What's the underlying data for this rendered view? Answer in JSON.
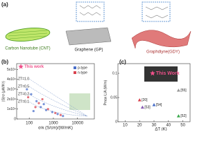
{
  "panel_a": {
    "label": "(a)",
    "cnt": "Carbon Nanotube (CNT)",
    "gp": "Graphene (GP)",
    "gdy": "Graphdiyne(GDY)"
  },
  "chart_data": [
    {
      "type": "scatter",
      "panel": "(b)",
      "xlabel": "σ/κ (S/cm)/(W/mK)",
      "ylabel": "|S|²σ (μW/K²)",
      "xscale": "log",
      "xlim": [
        30,
        50000
      ],
      "xticks": [
        100,
        1000,
        10000
      ],
      "ylim": [
        0,
        56000
      ],
      "yticks": [
        0,
        {
          "value": 10000,
          "label": "1x10⁴"
        },
        {
          "value": 20000,
          "label": "2x10⁴"
        },
        {
          "value": 30000,
          "label": "3x10⁴"
        },
        {
          "value": 40000,
          "label": "4x10⁴"
        },
        {
          "value": 50000,
          "label": "5x10⁴"
        }
      ],
      "series": [
        {
          "name": "p-type",
          "color": "#4a6fc9",
          "x": [
            80,
            120,
            200,
            300,
            500,
            900,
            1500,
            2500,
            150,
            400
          ],
          "values": [
            30000,
            25000,
            18000,
            12000,
            9000,
            7000,
            5000,
            3000,
            8000,
            15000
          ]
        },
        {
          "name": "n-type",
          "color": "#d9434f",
          "x": [
            90,
            250,
            600,
            1200,
            2000,
            180,
            350
          ],
          "values": [
            22000,
            16000,
            10000,
            6000,
            4000,
            12000,
            20000
          ]
        }
      ],
      "highlight": {
        "name": "This work",
        "color": "#f0508a",
        "x": 45,
        "value": 53000
      },
      "annotations": [
        "ZT=1.0",
        "ZT=0.5",
        "ZT=0.2",
        "ZT=0.1"
      ]
    },
    {
      "type": "scatter",
      "panel": "(c)",
      "xlabel": "ΔT (K)",
      "ylabel": "Pmax·L/A (W/m)",
      "xlim": [
        5,
        55
      ],
      "xticks": [
        10,
        20,
        30,
        40,
        50
      ],
      "ylim": [
        0,
        0.12
      ],
      "yticks": [
        0,
        0.05,
        0.1
      ],
      "points": {
        "x": [
          47,
          20,
          22,
          30,
          47
        ],
        "values": [
          0.065,
          0.045,
          0.03,
          0.035,
          0.012
        ],
        "labels": [
          "[55]",
          "[20]",
          "[53]",
          "[54]",
          "[52]"
        ],
        "colors": [
          "#999999",
          "#d9434f",
          "#8a5fb5",
          "#4a6fc9",
          "#3aa84a"
        ]
      },
      "highlight": {
        "name": "This Work",
        "color": "#f0508a",
        "x": 29,
        "value": 0.1
      }
    }
  ]
}
